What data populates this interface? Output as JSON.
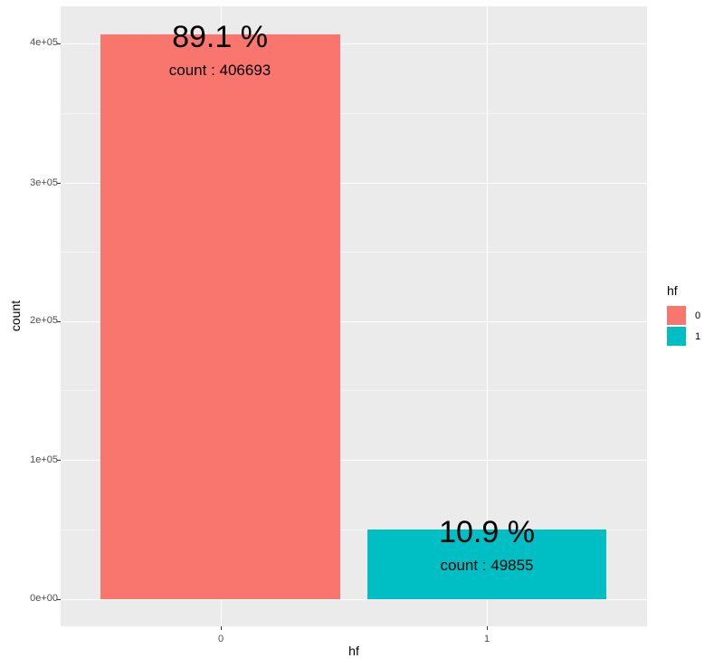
{
  "chart_data": {
    "type": "bar",
    "title": "",
    "xlabel": "hf",
    "ylabel": "count",
    "categories": [
      "0",
      "1"
    ],
    "values": [
      406693,
      49855
    ],
    "percent_labels": [
      "89.1 %",
      "10.9 %"
    ],
    "count_labels": [
      "count : 406693",
      "count : 49855"
    ],
    "colors": [
      "#F8766D",
      "#00BFC4"
    ],
    "ylim": [
      0,
      446000
    ],
    "yticks": [
      0,
      100000,
      200000,
      300000,
      400000
    ],
    "ytick_labels": [
      "0e+00",
      "1e+05",
      "2e+05",
      "3e+05",
      "4e+05"
    ],
    "xtick_labels": [
      "0",
      "1"
    ],
    "grid": true,
    "legend": {
      "title": "hf",
      "position": "right",
      "entries": [
        {
          "label": "0",
          "color": "#F8766D"
        },
        {
          "label": "1",
          "color": "#00BFC4"
        }
      ]
    }
  }
}
